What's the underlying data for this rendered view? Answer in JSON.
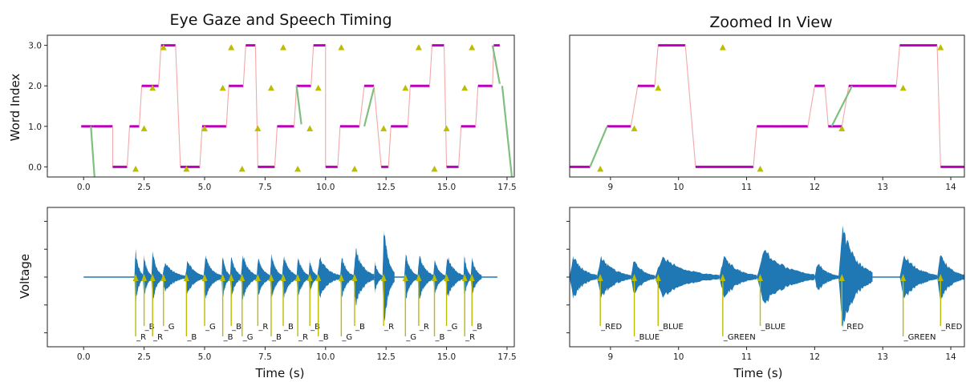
{
  "chart_data": [
    {
      "type": "line",
      "title": "Eye Gaze and Speech Timing",
      "xlabel": "",
      "ylabel": "Word Index",
      "xlim": [
        -1.5,
        17.8
      ],
      "ylim": [
        -0.25,
        3.25
      ],
      "xticks": [
        "0.0",
        "2.5",
        "5.0",
        "7.5",
        "10.0",
        "12.5",
        "15.0",
        "17.5"
      ],
      "yticks": [
        "0.0",
        "1.0",
        "2.0",
        "3.0"
      ],
      "colors": {
        "segment": "#bb00bb",
        "transition": "#f4a8a8",
        "saccade": "#7fbf7f",
        "marker": "#bcbc00"
      },
      "gaze_path": [
        [
          -0.1,
          1
        ],
        [
          0.3,
          1
        ],
        [
          0.4,
          1
        ],
        [
          1.2,
          1
        ],
        [
          1.2,
          0
        ],
        [
          1.8,
          0
        ],
        [
          1.9,
          1
        ],
        [
          2.3,
          1
        ],
        [
          2.4,
          2
        ],
        [
          3.1,
          2
        ],
        [
          3.2,
          3
        ],
        [
          3.8,
          3
        ],
        [
          4.0,
          0
        ],
        [
          4.8,
          0
        ],
        [
          4.9,
          1
        ],
        [
          5.9,
          1
        ],
        [
          6.0,
          2
        ],
        [
          6.6,
          2
        ],
        [
          6.7,
          3
        ],
        [
          7.1,
          3
        ],
        [
          7.2,
          0
        ],
        [
          7.9,
          0
        ],
        [
          8.0,
          1
        ],
        [
          8.7,
          1
        ],
        [
          8.8,
          2
        ],
        [
          9.4,
          2
        ],
        [
          9.5,
          3
        ],
        [
          10.0,
          3
        ],
        [
          10.0,
          0
        ],
        [
          10.5,
          0
        ],
        [
          10.6,
          1
        ],
        [
          11.4,
          1
        ],
        [
          11.6,
          2
        ],
        [
          12.0,
          2
        ],
        [
          12.3,
          0
        ],
        [
          12.6,
          0
        ],
        [
          12.7,
          1
        ],
        [
          13.4,
          1
        ],
        [
          13.5,
          2
        ],
        [
          14.3,
          2
        ],
        [
          14.4,
          3
        ],
        [
          14.9,
          3
        ],
        [
          15.0,
          0
        ],
        [
          15.5,
          0
        ],
        [
          15.6,
          1
        ],
        [
          16.2,
          1
        ],
        [
          16.3,
          2
        ],
        [
          16.9,
          2
        ],
        [
          16.95,
          3
        ],
        [
          17.2,
          3
        ]
      ],
      "saccades": [
        [
          [
            0.3,
            1
          ],
          [
            0.45,
            -0.25
          ]
        ],
        [
          [
            8.8,
            2
          ],
          [
            9.0,
            1.05
          ]
        ],
        [
          [
            11.6,
            1
          ],
          [
            12.0,
            1.95
          ]
        ],
        [
          [
            16.9,
            3
          ],
          [
            17.2,
            2.05
          ]
        ],
        [
          [
            17.3,
            2
          ],
          [
            17.7,
            -0.25
          ]
        ]
      ],
      "word_onsets": [
        [
          2.15,
          -0.05
        ],
        [
          2.5,
          0.95
        ],
        [
          2.85,
          1.95
        ],
        [
          3.3,
          2.95
        ],
        [
          4.25,
          -0.05
        ],
        [
          5.0,
          0.95
        ],
        [
          5.75,
          1.95
        ],
        [
          6.1,
          2.95
        ],
        [
          6.55,
          -0.05
        ],
        [
          7.2,
          0.95
        ],
        [
          7.75,
          1.95
        ],
        [
          8.25,
          2.95
        ],
        [
          8.85,
          -0.05
        ],
        [
          9.35,
          0.95
        ],
        [
          9.7,
          1.95
        ],
        [
          10.65,
          2.95
        ],
        [
          11.2,
          -0.05
        ],
        [
          12.4,
          0.95
        ],
        [
          13.3,
          1.95
        ],
        [
          13.85,
          2.95
        ],
        [
          14.5,
          -0.05
        ],
        [
          15.0,
          0.95
        ],
        [
          15.75,
          1.95
        ],
        [
          16.05,
          2.95
        ]
      ]
    },
    {
      "type": "line",
      "title": "Zoomed In View",
      "xlabel": "",
      "ylabel": "",
      "xlim": [
        8.4,
        14.2
      ],
      "ylim": [
        -0.25,
        3.25
      ],
      "xticks": [
        "9",
        "10",
        "11",
        "12",
        "13",
        "14"
      ],
      "gaze_path": [
        [
          8.4,
          0
        ],
        [
          8.7,
          0
        ],
        [
          8.95,
          1
        ],
        [
          9.3,
          1
        ],
        [
          9.4,
          2
        ],
        [
          9.65,
          2
        ],
        [
          9.7,
          3
        ],
        [
          10.1,
          3
        ],
        [
          10.25,
          0
        ],
        [
          11.1,
          0
        ],
        [
          11.15,
          1
        ],
        [
          11.4,
          1
        ],
        [
          11.5,
          1
        ],
        [
          11.9,
          1
        ],
        [
          12.0,
          2
        ],
        [
          12.15,
          2
        ],
        [
          12.2,
          1
        ],
        [
          12.4,
          1
        ],
        [
          12.5,
          2
        ],
        [
          13.2,
          2
        ],
        [
          13.25,
          3
        ],
        [
          13.8,
          3
        ],
        [
          13.85,
          0
        ],
        [
          14.2,
          0
        ]
      ],
      "saccades": [
        [
          [
            8.7,
            0
          ],
          [
            8.95,
            1
          ]
        ],
        [
          [
            12.25,
            1
          ],
          [
            12.55,
            2
          ]
        ]
      ],
      "word_onsets": [
        [
          8.85,
          -0.05
        ],
        [
          9.35,
          0.95
        ],
        [
          9.7,
          1.95
        ],
        [
          10.65,
          2.95
        ],
        [
          11.2,
          -0.05
        ],
        [
          12.4,
          0.95
        ],
        [
          13.3,
          1.95
        ],
        [
          13.85,
          2.95
        ]
      ]
    },
    {
      "type": "area",
      "title": "",
      "xlabel": "Time (s)",
      "ylabel": "Voltage",
      "xlim": [
        -1.5,
        17.8
      ],
      "ylim": [
        -1.25,
        1.25
      ],
      "xticks": [
        "0.0",
        "2.5",
        "5.0",
        "7.5",
        "10.0",
        "12.5",
        "15.0",
        "17.5"
      ],
      "waveform_color": "#1f77b4",
      "word_markers": [
        {
          "x": 2.15,
          "label": "_R",
          "level": "low"
        },
        {
          "x": 2.5,
          "label": "_B",
          "level": "high"
        },
        {
          "x": 2.85,
          "label": "_R",
          "level": "low"
        },
        {
          "x": 3.3,
          "label": "_G",
          "level": "high"
        },
        {
          "x": 4.25,
          "label": "_B",
          "level": "low"
        },
        {
          "x": 5.0,
          "label": "_G",
          "level": "high"
        },
        {
          "x": 5.75,
          "label": "_B",
          "level": "low"
        },
        {
          "x": 6.1,
          "label": "_B",
          "level": "high"
        },
        {
          "x": 6.55,
          "label": "_G",
          "level": "low"
        },
        {
          "x": 7.2,
          "label": "_R",
          "level": "high"
        },
        {
          "x": 7.75,
          "label": "_B",
          "level": "low"
        },
        {
          "x": 8.25,
          "label": "_B",
          "level": "high"
        },
        {
          "x": 8.85,
          "label": "_R",
          "level": "low"
        },
        {
          "x": 9.35,
          "label": "_B",
          "level": "high"
        },
        {
          "x": 9.7,
          "label": "_B",
          "level": "low"
        },
        {
          "x": 10.65,
          "label": "_G",
          "level": "low"
        },
        {
          "x": 11.2,
          "label": "_B",
          "level": "high"
        },
        {
          "x": 12.4,
          "label": "_R",
          "level": "high"
        },
        {
          "x": 13.3,
          "label": "_G",
          "level": "low"
        },
        {
          "x": 13.85,
          "label": "_R",
          "level": "high"
        },
        {
          "x": 14.5,
          "label": "_B",
          "level": "low"
        },
        {
          "x": 15.0,
          "label": "_G",
          "level": "high"
        },
        {
          "x": 15.75,
          "label": "_R",
          "level": "low"
        },
        {
          "x": 16.05,
          "label": "_B",
          "level": "high"
        }
      ],
      "speech_bursts": [
        {
          "start": 2.1,
          "end": 2.45,
          "amp": 0.55
        },
        {
          "start": 2.45,
          "end": 2.8,
          "amp": 0.45
        },
        {
          "start": 2.8,
          "end": 3.25,
          "amp": 0.5
        },
        {
          "start": 3.25,
          "end": 4.2,
          "amp": 0.3
        },
        {
          "start": 4.2,
          "end": 4.95,
          "amp": 0.35
        },
        {
          "start": 4.95,
          "end": 5.7,
          "amp": 0.4
        },
        {
          "start": 5.7,
          "end": 6.05,
          "amp": 0.45
        },
        {
          "start": 6.05,
          "end": 6.5,
          "amp": 0.45
        },
        {
          "start": 6.5,
          "end": 7.15,
          "amp": 0.45
        },
        {
          "start": 7.15,
          "end": 7.7,
          "amp": 0.42
        },
        {
          "start": 7.7,
          "end": 8.2,
          "amp": 0.45
        },
        {
          "start": 8.2,
          "end": 8.8,
          "amp": 0.45
        },
        {
          "start": 8.8,
          "end": 9.3,
          "amp": 0.42
        },
        {
          "start": 9.3,
          "end": 9.65,
          "amp": 0.35
        },
        {
          "start": 9.65,
          "end": 10.6,
          "amp": 0.4
        },
        {
          "start": 10.6,
          "end": 11.15,
          "amp": 0.42
        },
        {
          "start": 11.15,
          "end": 12.0,
          "amp": 0.55
        },
        {
          "start": 12.0,
          "end": 12.35,
          "amp": 0.3
        },
        {
          "start": 12.35,
          "end": 12.85,
          "amp": 1.0
        },
        {
          "start": 13.25,
          "end": 13.8,
          "amp": 0.45
        },
        {
          "start": 13.8,
          "end": 14.45,
          "amp": 0.45
        },
        {
          "start": 14.45,
          "end": 14.95,
          "amp": 0.35
        },
        {
          "start": 14.95,
          "end": 15.7,
          "amp": 0.42
        },
        {
          "start": 15.7,
          "end": 16.0,
          "amp": 0.45
        },
        {
          "start": 16.0,
          "end": 16.45,
          "amp": 0.4
        }
      ]
    },
    {
      "type": "area",
      "title": "",
      "xlabel": "Time (s)",
      "ylabel": "",
      "xlim": [
        8.4,
        14.2
      ],
      "ylim": [
        -1.25,
        1.25
      ],
      "xticks": [
        "9",
        "10",
        "11",
        "12",
        "13",
        "14"
      ],
      "word_markers": [
        {
          "x": 8.85,
          "label": "_RED",
          "level": "high"
        },
        {
          "x": 9.35,
          "label": "_BLUE",
          "level": "low"
        },
        {
          "x": 9.7,
          "label": "_BLUE",
          "level": "high"
        },
        {
          "x": 10.65,
          "label": "_GREEN",
          "level": "low"
        },
        {
          "x": 11.2,
          "label": "_BLUE",
          "level": "high"
        },
        {
          "x": 12.4,
          "label": "_RED",
          "level": "high"
        },
        {
          "x": 13.3,
          "label": "_GREEN",
          "level": "low"
        },
        {
          "x": 13.85,
          "label": "_RED",
          "level": "high"
        }
      ],
      "speech_bursts": [
        {
          "start": 8.4,
          "end": 8.8,
          "amp": 0.42
        },
        {
          "start": 8.8,
          "end": 9.3,
          "amp": 0.42
        },
        {
          "start": 9.3,
          "end": 9.65,
          "amp": 0.35
        },
        {
          "start": 9.65,
          "end": 10.6,
          "amp": 0.4
        },
        {
          "start": 10.6,
          "end": 11.15,
          "amp": 0.42
        },
        {
          "start": 11.15,
          "end": 12.0,
          "amp": 0.55
        },
        {
          "start": 12.0,
          "end": 12.35,
          "amp": 0.3
        },
        {
          "start": 12.35,
          "end": 12.85,
          "amp": 1.0
        },
        {
          "start": 13.25,
          "end": 13.8,
          "amp": 0.45
        },
        {
          "start": 13.8,
          "end": 14.2,
          "amp": 0.45
        }
      ]
    }
  ]
}
